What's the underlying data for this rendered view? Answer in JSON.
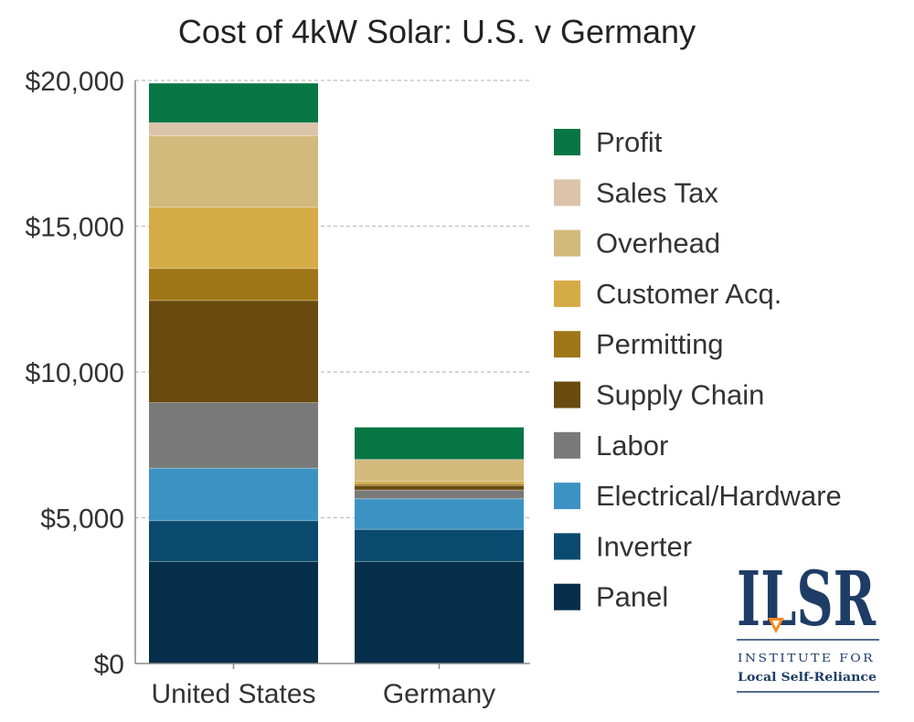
{
  "chart_data": {
    "type": "bar",
    "stacked": true,
    "title": "Cost of 4kW Solar: U.S. v Germany",
    "xlabel": "",
    "ylabel": "",
    "ylim": [
      0,
      20000
    ],
    "yticks": [
      {
        "value": 0,
        "label": "$0"
      },
      {
        "value": 5000,
        "label": "$5,000"
      },
      {
        "value": 10000,
        "label": "$10,000"
      },
      {
        "value": 15000,
        "label": "$15,000"
      },
      {
        "value": 20000,
        "label": "$20,000"
      }
    ],
    "grid": true,
    "legend_position": "right",
    "categories": [
      "United States",
      "Germany"
    ],
    "series": [
      {
        "name": "Panel",
        "color": "#062f4b",
        "values": [
          3500,
          3500
        ]
      },
      {
        "name": "Inverter",
        "color": "#0a4a6e",
        "values": [
          1400,
          1100
        ]
      },
      {
        "name": "Electrical/Hardware",
        "color": "#3c93c3",
        "values": [
          1800,
          1050
        ]
      },
      {
        "name": "Labor",
        "color": "#797979",
        "values": [
          2250,
          300
        ]
      },
      {
        "name": "Supply Chain",
        "color": "#6a4b0f",
        "values": [
          3500,
          150
        ]
      },
      {
        "name": "Permitting",
        "color": "#9e7617",
        "values": [
          1100,
          60
        ]
      },
      {
        "name": "Customer Acq.",
        "color": "#d4ab45",
        "values": [
          2100,
          90
        ]
      },
      {
        "name": "Overhead",
        "color": "#d2b97c",
        "values": [
          2450,
          750
        ]
      },
      {
        "name": "Sales Tax",
        "color": "#dcc4aa",
        "values": [
          450,
          0
        ]
      },
      {
        "name": "Profit",
        "color": "#087544",
        "values": [
          1350,
          1100
        ]
      }
    ]
  },
  "logo": {
    "mark": "ILSR",
    "line1": "INSTITUTE FOR",
    "line2": "Local Self-Reliance"
  }
}
